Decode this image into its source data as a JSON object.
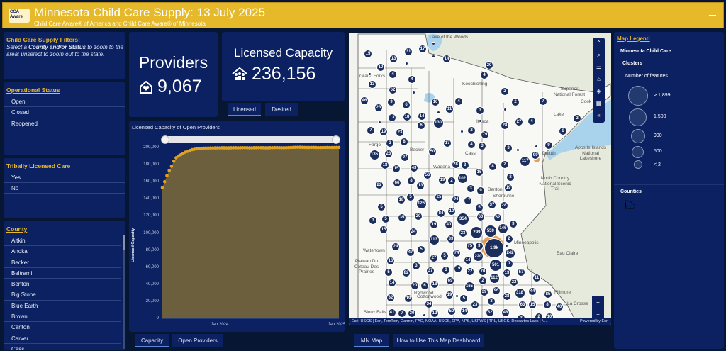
{
  "header": {
    "logo_text": "Child Care Aware",
    "title": "Minnesota Child Care Supply: 13 July 2025",
    "subtitle": "Child Care Aware® of America and Child Care Aware® of Minnesota"
  },
  "filters": {
    "title": "Child Care Supply Filters:",
    "line_pre": "Select a ",
    "line_bold": "County and/or Status",
    "line_post": "  to zoom to the area; unselect to zoom out to the state."
  },
  "operational_status": {
    "title": "Operational Status",
    "items": [
      "Open",
      "Closed",
      "Reopened"
    ]
  },
  "tribal": {
    "title": "Tribally Licensed Care",
    "items": [
      "Yes",
      "No"
    ]
  },
  "county": {
    "title": "County",
    "items": [
      "Aitkin",
      "Anoka",
      "Becker",
      "Beltrami",
      "Benton",
      "Big Stone",
      "Blue Earth",
      "Brown",
      "Carlton",
      "Carver",
      "Cass"
    ]
  },
  "providers": {
    "label": "Providers",
    "value": "9,067"
  },
  "capacity": {
    "label": "Licensed Capacity",
    "value": "236,156",
    "tabs": [
      "Licensed",
      "Desired"
    ]
  },
  "chart_tabs": [
    "Capacity",
    "Open Providers"
  ],
  "chart_data": {
    "type": "area",
    "title": "Licensed Capacity of Open Providers",
    "xlabel": "",
    "ylabel": "Licensed Capacity",
    "ylim": [
      0,
      200000
    ],
    "yticks": [
      "200,000",
      "180,000",
      "160,000",
      "140,000",
      "120,000",
      "100,000",
      "80,000",
      "60,000",
      "40,000",
      "20,000",
      "0"
    ],
    "xticks": [
      "Jan 2024",
      "Jan 2025"
    ],
    "x_start": "2023-07",
    "x_interval": "week",
    "series_color": "#e0a21e",
    "fill_color": "#6b5f3d",
    "values": [
      153000,
      160000,
      167000,
      173000,
      178000,
      184000,
      188000,
      190000,
      191500,
      193000,
      194500,
      195500,
      196500,
      197500,
      198000,
      198500,
      199000,
      199000,
      199200,
      199300,
      199300,
      199400,
      199400,
      199500,
      199500,
      199500,
      199600,
      199600,
      199500,
      199500,
      199600,
      199700,
      199700,
      199600,
      199700,
      199800,
      199800,
      199700,
      199600,
      199600,
      199700,
      199700,
      199800,
      199800,
      199700,
      199600,
      199600,
      199700,
      199800,
      199900,
      199900,
      199800,
      199700,
      199700,
      199800,
      199900,
      200000,
      200100,
      200200,
      200300,
      200300,
      200200,
      200100,
      200000,
      200000,
      200100,
      200100,
      200000,
      199900,
      199900,
      200000,
      200000,
      200100,
      200000,
      200000,
      200000,
      200100,
      200100
    ]
  },
  "map": {
    "attribution": "Esri, USGS | Esri, TomTom, Garmin, FAO, NOAA, USGS, EPA, NPS, USFWS | TPL, USGS, Descartes Labs | N...",
    "powered": "Powered by Esri",
    "places": [
      "Koochiching",
      "Lake",
      "Cook",
      "Itasca",
      "Cass",
      "Becker",
      "Wadena",
      "Grand Forks",
      "Fargo",
      "Duluth",
      "Superior National Forest",
      "Apostle Islands National Lakeshore",
      "North Country National Scenic Trail",
      "Minneapolis",
      "Eau Claire",
      "La Crosse",
      "Watertown",
      "Plateau Du Coteau Des Prairies",
      "Redwood",
      "Cottonwood",
      "Fillmore",
      "Sherburne",
      "Benton",
      "Sioux Falls",
      "Lake of the Woods"
    ],
    "clusters": [
      "15",
      "31",
      "17",
      "13",
      "14",
      "10",
      "20",
      "4",
      "4",
      "4",
      "13",
      "62",
      "46",
      "9",
      "6",
      "10",
      "4",
      "2",
      "2",
      "7",
      "23",
      "11",
      "3",
      "13",
      "18",
      "14",
      "130",
      "6",
      "27",
      "4",
      "2",
      "28",
      "7",
      "19",
      "23",
      "2",
      "79",
      "6",
      "2",
      "8",
      "17",
      "4",
      "3",
      "3",
      "9",
      "135",
      "23",
      "97",
      "50",
      "99",
      "117",
      "18",
      "15",
      "43",
      "28",
      "2",
      "8",
      "2",
      "22",
      "66",
      "8",
      "13",
      "56",
      "19",
      "2",
      "102",
      "15",
      "8",
      "3",
      "9",
      "19",
      "18",
      "5",
      "126",
      "25",
      "94",
      "17",
      "5",
      "37",
      "28",
      "5",
      "84",
      "10",
      "3",
      "5",
      "35",
      "20",
      "354",
      "60",
      "62",
      "3",
      "15",
      "19",
      "40",
      "299",
      "146",
      "24",
      "23",
      "559",
      "113",
      "33",
      "2",
      "24",
      "47",
      "5",
      "75",
      "3",
      "1.9k",
      "242",
      "5",
      "74",
      "220",
      "27",
      "501",
      "7",
      "16",
      "14",
      "3",
      "37",
      "3",
      "19",
      "22",
      "70",
      "13",
      "57",
      "5",
      "82",
      "112",
      "11",
      "14",
      "69",
      "2",
      "22",
      "20",
      "6",
      "18",
      "165",
      "39",
      "96",
      "28",
      "318",
      "44",
      "85",
      "32",
      "19",
      "19",
      "5",
      "3",
      "34",
      "23",
      "63",
      "15",
      "8",
      "40",
      "41",
      "7",
      "30",
      "12",
      "50",
      "14",
      "52",
      "48",
      "3",
      "2",
      "10"
    ],
    "tabs": [
      "MN Map",
      "How to Use This Map Dashboard"
    ]
  },
  "legend": {
    "title": "Map Legend",
    "layer": "Minnesota Child Care",
    "group": "Clusters",
    "subtitle": "Number of features",
    "sizes": [
      "> 1,899",
      "1,500",
      "900",
      "500",
      "< 2"
    ],
    "counties": "Counties"
  }
}
